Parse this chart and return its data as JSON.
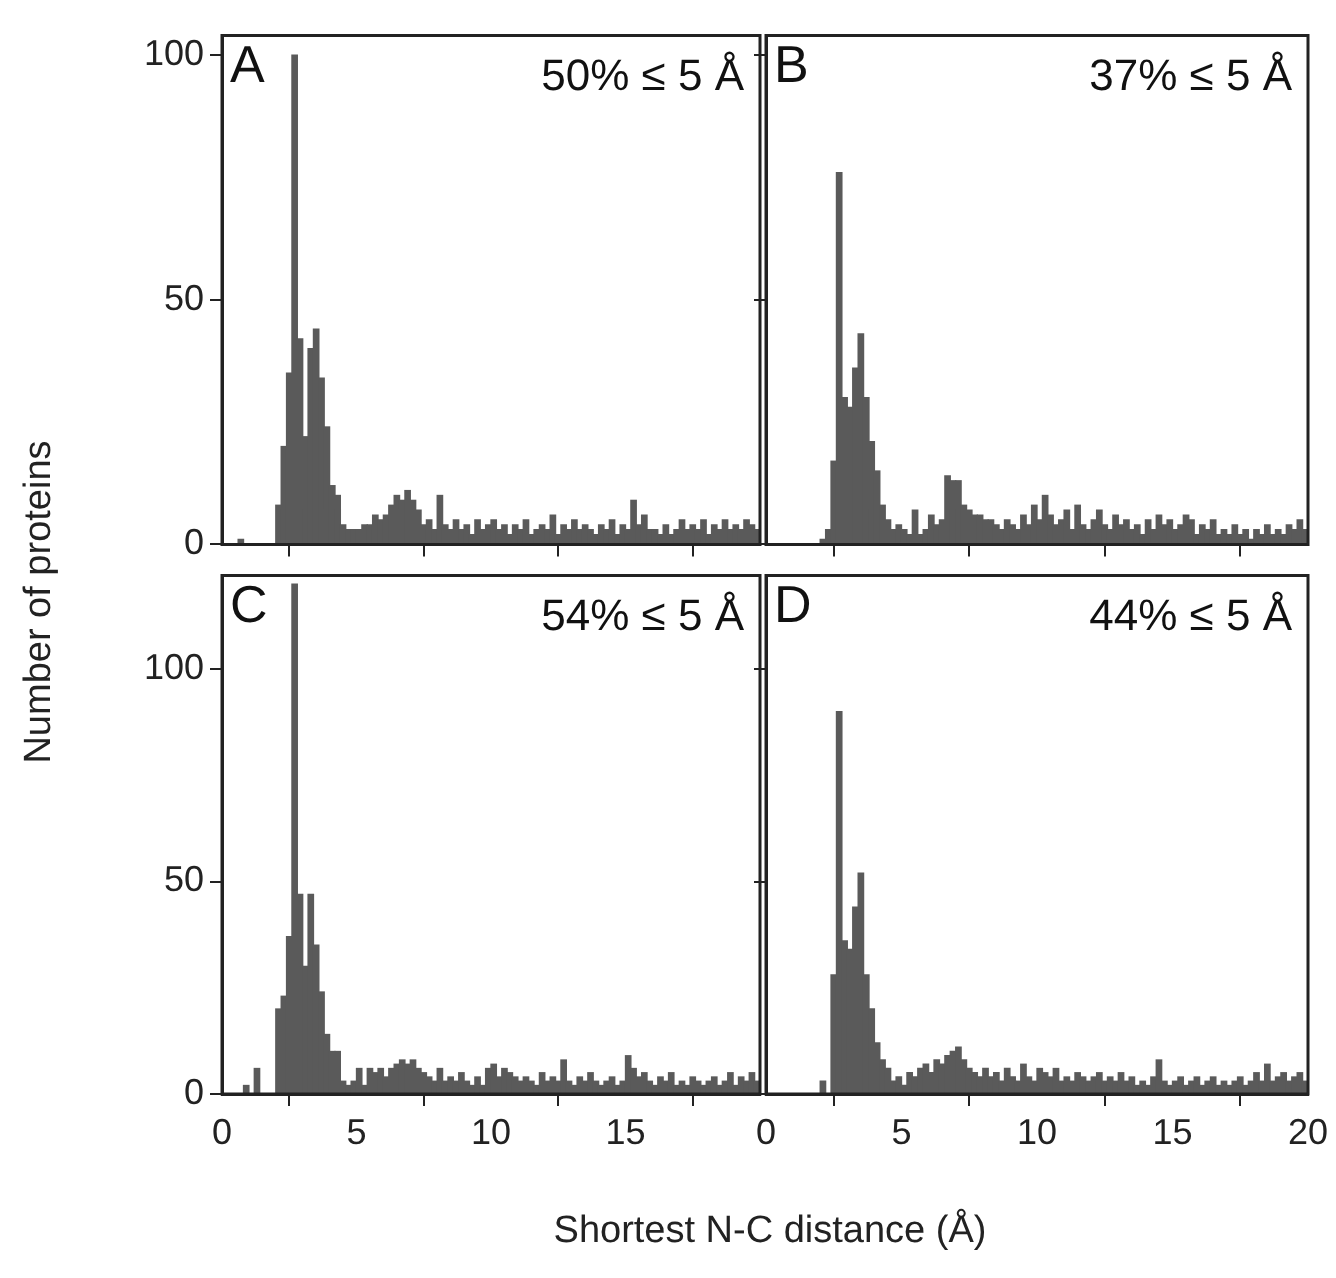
{
  "chart_data": [
    {
      "type": "histogram",
      "title": "A",
      "annotations": [
        "50% ≤ 5 Å"
      ],
      "ylabel": "Number of proteins",
      "xlabel": "Shortest N-C distance (Å)",
      "color": "#5a5a5a",
      "bins": [
        0,
        0.2,
        0.4,
        0.6,
        0.8,
        1,
        1.2,
        1.4,
        1.6,
        1.8,
        2,
        2.2,
        2.4,
        2.6,
        2.8,
        3,
        3.2,
        3.4,
        3.6,
        3.8,
        4,
        4.2,
        4.4,
        4.6,
        4.8,
        5,
        5.2,
        5.4,
        5.6,
        5.8,
        6,
        6.2,
        6.4,
        6.6,
        6.8,
        7,
        7.2,
        7.4,
        7.6,
        7.8,
        8,
        8.2,
        8.4,
        8.6,
        8.8,
        9,
        9.2,
        9.4,
        9.6,
        9.8,
        10,
        10.2,
        10.4,
        10.6,
        10.8,
        11,
        11.2,
        11.4,
        11.6,
        11.8,
        12,
        12.2,
        12.4,
        12.6,
        12.8,
        13,
        13.2,
        13.4,
        13.6,
        13.8,
        14,
        14.2,
        14.4,
        14.6,
        14.8,
        15,
        15.2,
        15.4,
        15.6,
        15.8,
        16,
        16.2,
        16.4,
        16.6,
        16.8,
        17,
        17.2,
        17.4,
        17.6,
        17.8,
        18,
        18.2,
        18.4,
        18.6,
        18.8,
        19,
        19.2,
        19.4,
        19.6,
        19.8,
        20
      ],
      "values": [
        0,
        0,
        0,
        1,
        0,
        0,
        0,
        0,
        0,
        0,
        8,
        20,
        35,
        100,
        42,
        22,
        40,
        44,
        34,
        24,
        12,
        10,
        4,
        3,
        3,
        3,
        4,
        4,
        6,
        5,
        6,
        8,
        10,
        9,
        11,
        9,
        7,
        4,
        5,
        3,
        10,
        4,
        3,
        5,
        3,
        4,
        2,
        5,
        3,
        4,
        5,
        3,
        4,
        2,
        4,
        3,
        5,
        2,
        3,
        4,
        3,
        6,
        2,
        4,
        3,
        5,
        3,
        4,
        3,
        2,
        4,
        3,
        5,
        2,
        4,
        3,
        9,
        4,
        6,
        3,
        3,
        2,
        4,
        2,
        3,
        5,
        3,
        4,
        3,
        5,
        2,
        4,
        3,
        5,
        3,
        4,
        3,
        5,
        4,
        3
      ],
      "xlim": [
        0,
        20
      ],
      "xticks": [
        0,
        5,
        10,
        15,
        20
      ],
      "ylim": [
        0,
        104
      ],
      "yticks": [
        0,
        50,
        100
      ],
      "tick_labels": "y"
    },
    {
      "type": "histogram",
      "title": "B",
      "annotations": [
        "37% ≤ 5 Å"
      ],
      "color": "#5a5a5a",
      "bins": [
        0,
        0.2,
        0.4,
        0.6,
        0.8,
        1,
        1.2,
        1.4,
        1.6,
        1.8,
        2,
        2.2,
        2.4,
        2.6,
        2.8,
        3,
        3.2,
        3.4,
        3.6,
        3.8,
        4,
        4.2,
        4.4,
        4.6,
        4.8,
        5,
        5.2,
        5.4,
        5.6,
        5.8,
        6,
        6.2,
        6.4,
        6.6,
        6.8,
        7,
        7.2,
        7.4,
        7.6,
        7.8,
        8,
        8.2,
        8.4,
        8.6,
        8.8,
        9,
        9.2,
        9.4,
        9.6,
        9.8,
        10,
        10.2,
        10.4,
        10.6,
        10.8,
        11,
        11.2,
        11.4,
        11.6,
        11.8,
        12,
        12.2,
        12.4,
        12.6,
        12.8,
        13,
        13.2,
        13.4,
        13.6,
        13.8,
        14,
        14.2,
        14.4,
        14.6,
        14.8,
        15,
        15.2,
        15.4,
        15.6,
        15.8,
        16,
        16.2,
        16.4,
        16.6,
        16.8,
        17,
        17.2,
        17.4,
        17.6,
        17.8,
        18,
        18.2,
        18.4,
        18.6,
        18.8,
        19,
        19.2,
        19.4,
        19.6,
        19.8,
        20
      ],
      "values": [
        0,
        0,
        0,
        0,
        0,
        0,
        0,
        0,
        0,
        0,
        1,
        3,
        17,
        76,
        30,
        28,
        36,
        43,
        30,
        21,
        15,
        8,
        5,
        3,
        4,
        3,
        2,
        7,
        2,
        3,
        6,
        4,
        5,
        14,
        13,
        13,
        8,
        7,
        6,
        6,
        5,
        5,
        4,
        3,
        5,
        4,
        3,
        6,
        4,
        8,
        5,
        10,
        6,
        4,
        5,
        7,
        3,
        8,
        4,
        3,
        5,
        7,
        4,
        3,
        6,
        4,
        5,
        3,
        4,
        2,
        5,
        3,
        6,
        4,
        5,
        3,
        4,
        6,
        5,
        2,
        4,
        3,
        5,
        2,
        3,
        2,
        4,
        2,
        3,
        1,
        3,
        2,
        4,
        2,
        3,
        2,
        4,
        3,
        5,
        3
      ],
      "xlim": [
        0,
        20
      ],
      "xticks": [
        0,
        5,
        10,
        15,
        20
      ],
      "ylim": [
        0,
        104
      ],
      "yticks": [
        0,
        50,
        100
      ],
      "tick_labels": false
    },
    {
      "type": "histogram",
      "title": "C",
      "annotations": [
        "54% ≤ 5 Å"
      ],
      "color": "#5a5a5a",
      "bins": [
        0,
        0.2,
        0.4,
        0.6,
        0.8,
        1,
        1.2,
        1.4,
        1.6,
        1.8,
        2,
        2.2,
        2.4,
        2.6,
        2.8,
        3,
        3.2,
        3.4,
        3.6,
        3.8,
        4,
        4.2,
        4.4,
        4.6,
        4.8,
        5,
        5.2,
        5.4,
        5.6,
        5.8,
        6,
        6.2,
        6.4,
        6.6,
        6.8,
        7,
        7.2,
        7.4,
        7.6,
        7.8,
        8,
        8.2,
        8.4,
        8.6,
        8.8,
        9,
        9.2,
        9.4,
        9.6,
        9.8,
        10,
        10.2,
        10.4,
        10.6,
        10.8,
        11,
        11.2,
        11.4,
        11.6,
        11.8,
        12,
        12.2,
        12.4,
        12.6,
        12.8,
        13,
        13.2,
        13.4,
        13.6,
        13.8,
        14,
        14.2,
        14.4,
        14.6,
        14.8,
        15,
        15.2,
        15.4,
        15.6,
        15.8,
        16,
        16.2,
        16.4,
        16.6,
        16.8,
        17,
        17.2,
        17.4,
        17.6,
        17.8,
        18,
        18.2,
        18.4,
        18.6,
        18.8,
        19,
        19.2,
        19.4,
        19.6,
        19.8,
        20
      ],
      "values": [
        0,
        0,
        0,
        0,
        2,
        0,
        6,
        0,
        0,
        0,
        20,
        23,
        37,
        120,
        47,
        30,
        47,
        35,
        24,
        14,
        10,
        10,
        3,
        2,
        3,
        6,
        2,
        6,
        5,
        6,
        4,
        6,
        7,
        8,
        7,
        8,
        6,
        5,
        4,
        3,
        6,
        3,
        4,
        3,
        5,
        3,
        2,
        4,
        2,
        6,
        7,
        4,
        6,
        5,
        4,
        3,
        4,
        3,
        2,
        5,
        3,
        4,
        3,
        8,
        3,
        2,
        4,
        3,
        5,
        3,
        2,
        3,
        4,
        2,
        3,
        9,
        6,
        4,
        5,
        3,
        2,
        4,
        3,
        5,
        2,
        3,
        2,
        4,
        3,
        2,
        3,
        4,
        2,
        3,
        5,
        2,
        4,
        3,
        5,
        3
      ],
      "xlim": [
        0,
        20
      ],
      "xticks": [
        0,
        5,
        10,
        15,
        {
          "value": 20,
          "label": null
        }
      ],
      "ylim": [
        0,
        122
      ],
      "yticks": [
        0,
        50,
        100
      ]
    },
    {
      "type": "histogram",
      "title": "D",
      "annotations": [
        "44% ≤ 5 Å"
      ],
      "color": "#5a5a5a",
      "bins": [
        0,
        0.2,
        0.4,
        0.6,
        0.8,
        1,
        1.2,
        1.4,
        1.6,
        1.8,
        2,
        2.2,
        2.4,
        2.6,
        2.8,
        3,
        3.2,
        3.4,
        3.6,
        3.8,
        4,
        4.2,
        4.4,
        4.6,
        4.8,
        5,
        5.2,
        5.4,
        5.6,
        5.8,
        6,
        6.2,
        6.4,
        6.6,
        6.8,
        7,
        7.2,
        7.4,
        7.6,
        7.8,
        8,
        8.2,
        8.4,
        8.6,
        8.8,
        9,
        9.2,
        9.4,
        9.6,
        9.8,
        10,
        10.2,
        10.4,
        10.6,
        10.8,
        11,
        11.2,
        11.4,
        11.6,
        11.8,
        12,
        12.2,
        12.4,
        12.6,
        12.8,
        13,
        13.2,
        13.4,
        13.6,
        13.8,
        14,
        14.2,
        14.4,
        14.6,
        14.8,
        15,
        15.2,
        15.4,
        15.6,
        15.8,
        16,
        16.2,
        16.4,
        16.6,
        16.8,
        17,
        17.2,
        17.4,
        17.6,
        17.8,
        18,
        18.2,
        18.4,
        18.6,
        18.8,
        19,
        19.2,
        19.4,
        19.6,
        19.8,
        20
      ],
      "values": [
        0,
        0,
        0,
        0,
        0,
        0,
        0,
        0,
        0,
        0,
        3,
        0,
        28,
        90,
        36,
        34,
        44,
        52,
        28,
        20,
        12,
        8,
        6,
        3,
        4,
        2,
        5,
        4,
        6,
        7,
        5,
        8,
        7,
        9,
        10,
        11,
        8,
        6,
        5,
        4,
        6,
        4,
        5,
        3,
        6,
        4,
        3,
        7,
        4,
        3,
        6,
        5,
        4,
        6,
        3,
        4,
        3,
        5,
        4,
        3,
        4,
        5,
        3,
        4,
        3,
        5,
        3,
        4,
        2,
        3,
        2,
        4,
        8,
        3,
        2,
        3,
        4,
        2,
        3,
        4,
        2,
        3,
        4,
        2,
        3,
        2,
        3,
        4,
        2,
        3,
        5,
        3,
        7,
        3,
        4,
        5,
        3,
        4,
        5,
        3
      ],
      "xlim": [
        0,
        20
      ],
      "xticks": [
        0,
        5,
        10,
        15,
        20
      ],
      "ylim": [
        0,
        122
      ],
      "yticks": [
        0,
        50,
        100
      ],
      "tick_labels": "x"
    }
  ]
}
